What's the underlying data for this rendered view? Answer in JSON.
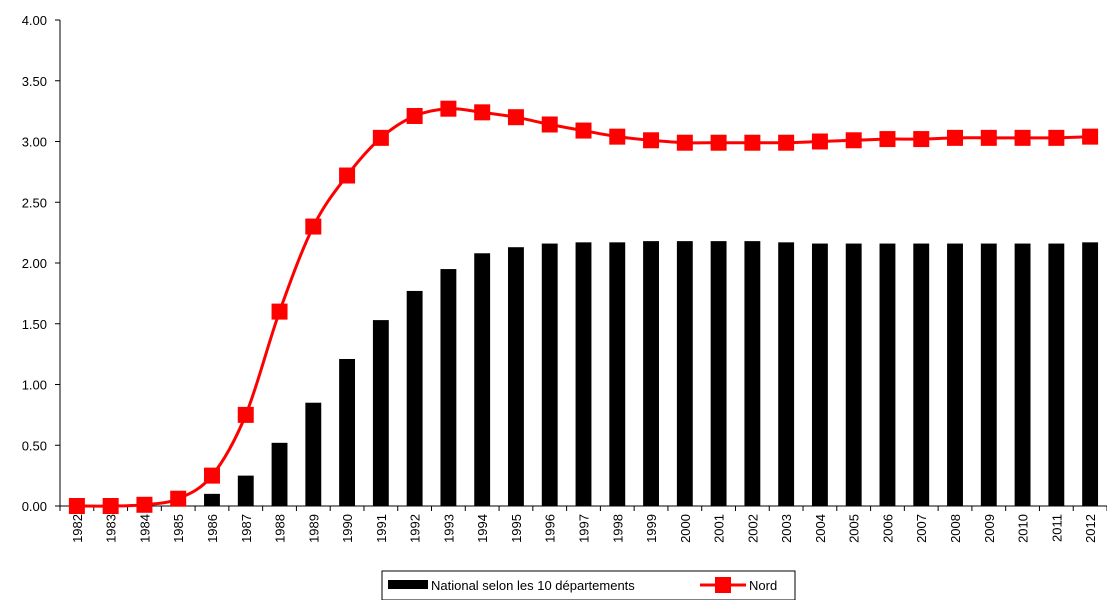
{
  "chart_data": {
    "type": "bar+line",
    "categories": [
      "1982",
      "1983",
      "1984",
      "1985",
      "1986",
      "1987",
      "1988",
      "1989",
      "1990",
      "1991",
      "1992",
      "1993",
      "1994",
      "1995",
      "1996",
      "1997",
      "1998",
      "1999",
      "2000",
      "2001",
      "2002",
      "2003",
      "2004",
      "2005",
      "2006",
      "2007",
      "2008",
      "2009",
      "2010",
      "2011",
      "2012"
    ],
    "series": [
      {
        "name": "National selon les 10 départements",
        "type": "bar",
        "color": "#000000",
        "values": [
          0,
          0,
          0,
          0,
          0.1,
          0.25,
          0.52,
          0.85,
          1.21,
          1.53,
          1.77,
          1.95,
          2.08,
          2.13,
          2.16,
          2.17,
          2.17,
          2.18,
          2.18,
          2.18,
          2.18,
          2.17,
          2.16,
          2.16,
          2.16,
          2.16,
          2.16,
          2.16,
          2.16,
          2.16,
          2.17
        ]
      },
      {
        "name": "Nord",
        "type": "line",
        "color": "#ff0000",
        "marker": "square",
        "values": [
          0,
          0,
          0.01,
          0.06,
          0.25,
          0.75,
          1.6,
          2.3,
          2.72,
          3.03,
          3.21,
          3.27,
          3.24,
          3.2,
          3.14,
          3.09,
          3.04,
          3.01,
          2.99,
          2.99,
          2.99,
          2.99,
          3.0,
          3.01,
          3.02,
          3.02,
          3.03,
          3.03,
          3.03,
          3.03,
          3.04
        ]
      }
    ],
    "y_ticks": [
      "0.00",
      "0.50",
      "1.00",
      "1.50",
      "2.00",
      "2.50",
      "3.00",
      "3.50",
      "4.00"
    ],
    "ylim": [
      0,
      4
    ],
    "grid": false,
    "legend_position": "bottom"
  }
}
